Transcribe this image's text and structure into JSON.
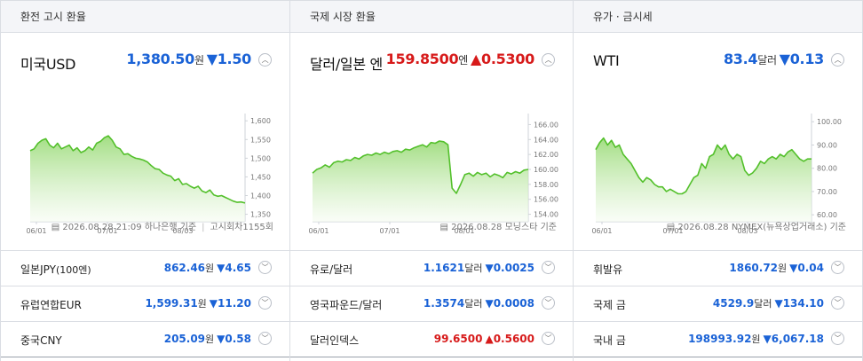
{
  "panels": [
    {
      "header": "환전 고시 환율",
      "card": {
        "title": "미국USD",
        "value": "1,380.50",
        "unit": "원",
        "arrow": "▼",
        "change": "1.50",
        "dir": "down"
      },
      "source": {
        "date": "2026.08.28 21:09",
        "provider": "하나은행 기준",
        "extra": "고시회차1155회"
      },
      "rows": [
        {
          "label": "일본JPY",
          "sub": "(100엔)",
          "value": "862.46",
          "unit": "원",
          "arrow": "▼",
          "change": "4.65",
          "dir": "down"
        },
        {
          "label": "유럽연합EUR",
          "sub": "",
          "value": "1,599.31",
          "unit": "원",
          "arrow": "▼",
          "change": "11.20",
          "dir": "down"
        },
        {
          "label": "중국CNY",
          "sub": "",
          "value": "205.09",
          "unit": "원",
          "arrow": "▼",
          "change": "0.58",
          "dir": "down"
        }
      ]
    },
    {
      "header": "국제 시장 환율",
      "card": {
        "title": "달러/일본 엔",
        "value": "159.8500",
        "unit": "엔",
        "arrow": "▲",
        "change": "0.5300",
        "dir": "up"
      },
      "source": {
        "date": "2026.08.28",
        "provider": "모닝스타 기준",
        "extra": ""
      },
      "rows": [
        {
          "label": "유로/달러",
          "sub": "",
          "value": "1.1621",
          "unit": "달러",
          "arrow": "▼",
          "change": "0.0025",
          "dir": "down"
        },
        {
          "label": "영국파운드/달러",
          "sub": "",
          "value": "1.3574",
          "unit": "달러",
          "arrow": "▼",
          "change": "0.0008",
          "dir": "down"
        },
        {
          "label": "달러인덱스",
          "sub": "",
          "value": "99.6500",
          "unit": "",
          "arrow": "▲",
          "change": "0.5600",
          "dir": "up"
        }
      ]
    },
    {
      "header": "유가 · 금시세",
      "card": {
        "title": "WTI",
        "value": "83.4",
        "unit": "달러",
        "arrow": "▼",
        "change": "0.13",
        "dir": "down"
      },
      "source": {
        "date": "2026.08.28",
        "provider": "NYMEX(뉴욕상업거래소) 기준",
        "extra": ""
      },
      "rows": [
        {
          "label": "휘발유",
          "sub": "",
          "value": "1860.72",
          "unit": "원",
          "arrow": "▼",
          "change": "0.04",
          "dir": "down"
        },
        {
          "label": "국제 금",
          "sub": "",
          "value": "4529.9",
          "unit": "달러",
          "arrow": "▼",
          "change": "134.10",
          "dir": "down"
        },
        {
          "label": "국내 금",
          "sub": "",
          "value": "198993.92",
          "unit": "원",
          "arrow": "▼",
          "change": "6,067.18",
          "dir": "down"
        }
      ]
    }
  ],
  "colors": {
    "up": "#d71a1a",
    "down": "#1a62d6",
    "line": "#53c02b"
  },
  "chart_data": [
    {
      "type": "area",
      "x_tick_labels": [
        "06/01",
        "07/01",
        "08/03"
      ],
      "y_tick_labels": [
        "1,600",
        "1,550",
        "1,500",
        "1,450",
        "1,400",
        "1,350"
      ],
      "ylim": [
        1330,
        1610
      ],
      "y": [
        1520,
        1525,
        1540,
        1548,
        1552,
        1535,
        1528,
        1540,
        1525,
        1530,
        1535,
        1520,
        1528,
        1515,
        1520,
        1530,
        1522,
        1540,
        1545,
        1555,
        1560,
        1548,
        1530,
        1525,
        1510,
        1512,
        1505,
        1500,
        1498,
        1495,
        1490,
        1480,
        1472,
        1470,
        1460,
        1455,
        1452,
        1440,
        1445,
        1430,
        1432,
        1425,
        1420,
        1425,
        1412,
        1408,
        1415,
        1402,
        1398,
        1400,
        1395,
        1390,
        1385,
        1382,
        1383,
        1380
      ]
    },
    {
      "type": "area",
      "x_tick_labels": [
        "06/01",
        "07/01",
        "08/01"
      ],
      "y_tick_labels": [
        "166.00",
        "164.00",
        "162.00",
        "160.00",
        "158.00",
        "156.00",
        "154.00"
      ],
      "ylim": [
        153,
        167
      ],
      "y": [
        159.5,
        160.0,
        160.2,
        160.6,
        160.3,
        160.9,
        161.1,
        161.0,
        161.3,
        161.2,
        161.6,
        161.4,
        161.8,
        162.0,
        161.9,
        162.2,
        162.0,
        162.3,
        162.1,
        162.4,
        162.5,
        162.3,
        162.7,
        162.6,
        162.9,
        163.1,
        163.3,
        163.0,
        163.6,
        163.5,
        163.8,
        163.7,
        163.3,
        157.5,
        156.8,
        158.0,
        159.3,
        159.5,
        159.1,
        159.6,
        159.3,
        159.5,
        159.0,
        159.4,
        159.2,
        158.9,
        159.6,
        159.4,
        159.7,
        159.5,
        159.9,
        160.0
      ]
    },
    {
      "type": "area",
      "x_tick_labels": [
        "06/01",
        "07/01",
        "08/03"
      ],
      "y_tick_labels": [
        "100.00",
        "90.00",
        "80.00",
        "70.00",
        "60.00"
      ],
      "ylim": [
        57,
        102
      ],
      "y": [
        88,
        91,
        93,
        90,
        92,
        89,
        90,
        86,
        84,
        82,
        79,
        76,
        74,
        76,
        75,
        73,
        72,
        72,
        70,
        71,
        70,
        69,
        69,
        70,
        73,
        76,
        77,
        82,
        80,
        85,
        86,
        90,
        88,
        90,
        86,
        84,
        86,
        85,
        79,
        77,
        78,
        80,
        83,
        82,
        84,
        85,
        84,
        86,
        85,
        87,
        88,
        86,
        84,
        83,
        84,
        84
      ]
    }
  ]
}
